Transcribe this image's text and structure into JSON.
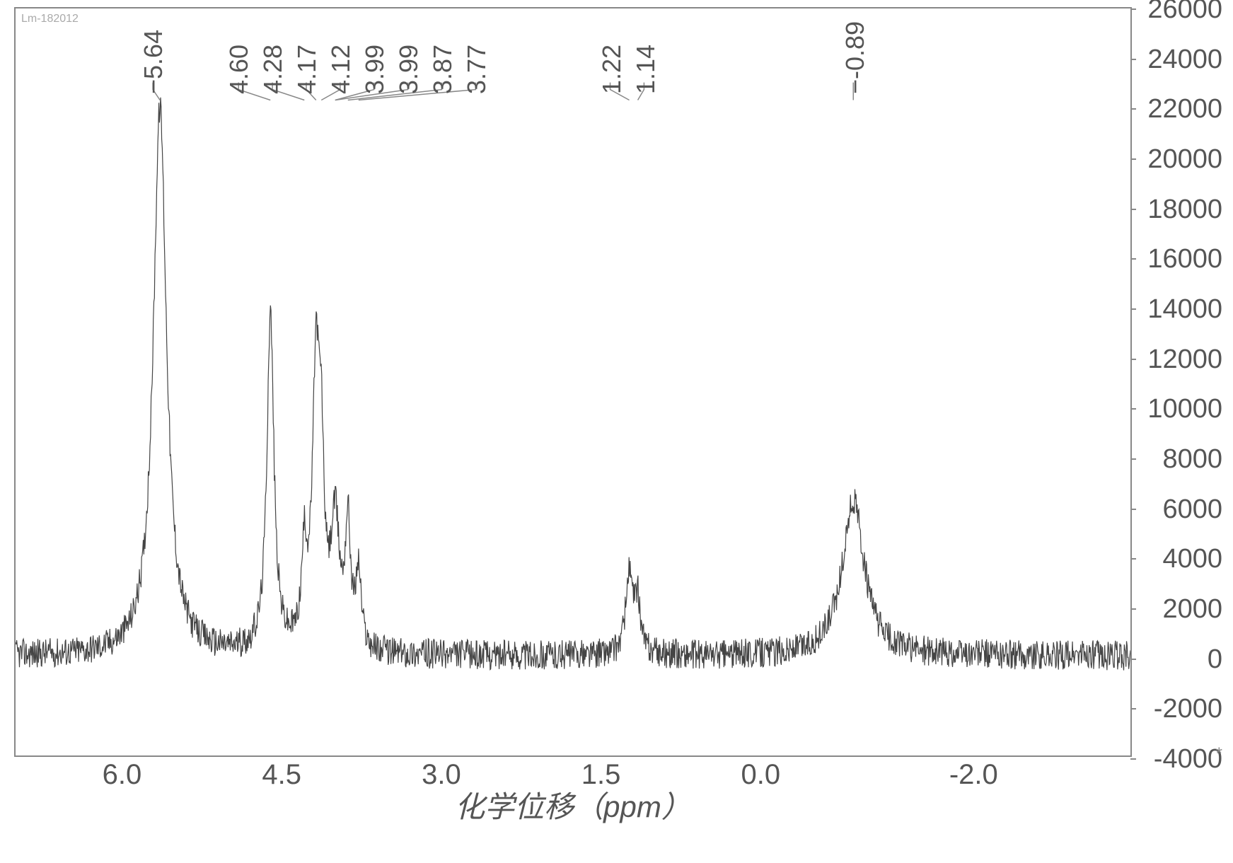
{
  "chart": {
    "type": "nmr_spectrum",
    "corner_label": "Lm-182012",
    "background_color": "#ffffff",
    "border_color": "#888888",
    "line_color": "#444444",
    "text_color": "#555555",
    "x_axis": {
      "label": "化学位移（ppm）",
      "min": -3.5,
      "max": 7.0,
      "ticks": [
        6.0,
        4.5,
        3.0,
        1.5,
        0.0,
        -2.0
      ],
      "tick_labels": [
        "6.0",
        "4.5",
        "3.0",
        "1.5",
        "0.0",
        "-2.0"
      ],
      "label_fontsize": 42,
      "tick_fontsize": 40
    },
    "y_axis": {
      "min": -4000,
      "max": 26000,
      "ticks": [
        26000,
        24000,
        22000,
        20000,
        18000,
        16000,
        14000,
        12000,
        10000,
        8000,
        6000,
        4000,
        2000,
        0,
        -2000,
        -4000
      ],
      "tick_labels": [
        "26000",
        "24000",
        "22000",
        "20000",
        "18000",
        "16000",
        "14000",
        "12000",
        "10000",
        "8000",
        "6000",
        "4000",
        "2000",
        "0",
        "-2000",
        "-4000"
      ],
      "tick_fontsize": 38
    },
    "peak_labels": [
      {
        "value": "5.64",
        "display": "−5.64",
        "ppm": 5.64
      },
      {
        "value": "4.60",
        "display": "4.60",
        "ppm": 4.6
      },
      {
        "value": "4.28",
        "display": "4.28",
        "ppm": 4.28
      },
      {
        "value": "4.17",
        "display": "4.17",
        "ppm": 4.17
      },
      {
        "value": "4.12",
        "display": "4.12",
        "ppm": 4.12
      },
      {
        "value": "3.99",
        "display": "3.99",
        "ppm": 3.99
      },
      {
        "value": "3.99",
        "display": "3.99",
        "ppm": 3.99
      },
      {
        "value": "3.87",
        "display": "3.87",
        "ppm": 3.87
      },
      {
        "value": "3.77",
        "display": "3.77",
        "ppm": 3.77
      },
      {
        "value": "1.22",
        "display": "1.22",
        "ppm": 1.22
      },
      {
        "value": "1.14",
        "display": "1.14",
        "ppm": 1.14
      },
      {
        "value": "-0.89",
        "display": "−-0.89",
        "ppm": -0.89
      }
    ],
    "spectrum_peaks": [
      {
        "ppm": 5.64,
        "intensity": 22000,
        "width": 0.15
      },
      {
        "ppm": 4.6,
        "intensity": 13500,
        "width": 0.08
      },
      {
        "ppm": 4.28,
        "intensity": 3500,
        "width": 0.06
      },
      {
        "ppm": 4.17,
        "intensity": 11000,
        "width": 0.08
      },
      {
        "ppm": 4.12,
        "intensity": 6000,
        "width": 0.06
      },
      {
        "ppm": 3.99,
        "intensity": 5000,
        "width": 0.1
      },
      {
        "ppm": 3.87,
        "intensity": 4800,
        "width": 0.06
      },
      {
        "ppm": 3.77,
        "intensity": 3000,
        "width": 0.06
      },
      {
        "ppm": 1.22,
        "intensity": 3200,
        "width": 0.08
      },
      {
        "ppm": 1.14,
        "intensity": 2000,
        "width": 0.06
      },
      {
        "ppm": -0.89,
        "intensity": 6200,
        "width": 0.25
      }
    ],
    "baseline_noise_amplitude": 600,
    "asterisk": "*"
  }
}
